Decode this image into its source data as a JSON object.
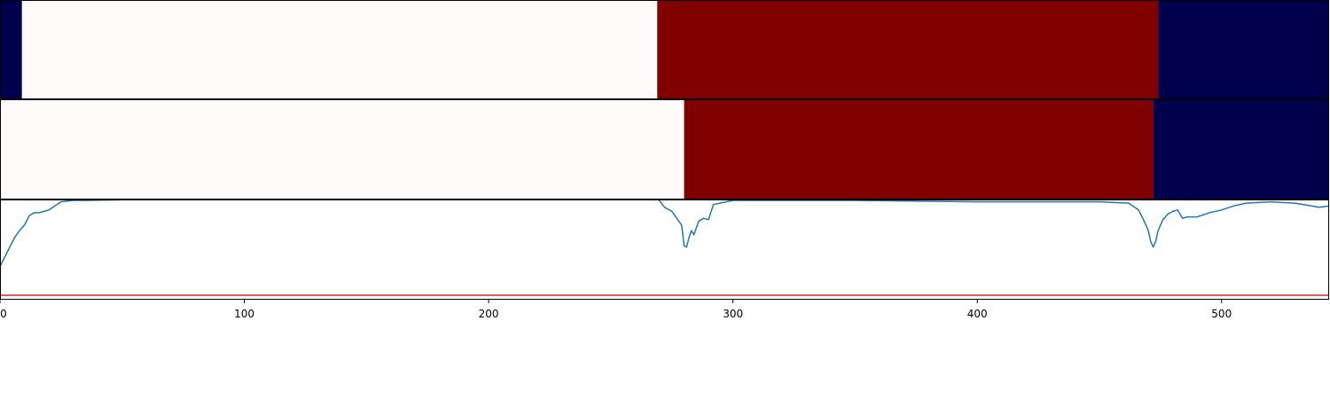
{
  "chart_data": [
    {
      "type": "heatmap",
      "xlim": [
        0,
        544
      ],
      "segments": [
        {
          "start": 0,
          "end": 9,
          "value": -1
        },
        {
          "start": 9,
          "end": 269,
          "value": 0
        },
        {
          "start": 269,
          "end": 474,
          "value": 1
        },
        {
          "start": 474,
          "end": 544,
          "value": -1
        }
      ]
    },
    {
      "type": "heatmap",
      "xlim": [
        0,
        544
      ],
      "segments": [
        {
          "start": 0,
          "end": 280,
          "value": 0
        },
        {
          "start": 280,
          "end": 472,
          "value": 1
        },
        {
          "start": 472,
          "end": 544,
          "value": -1
        }
      ]
    },
    {
      "type": "line",
      "xlim": [
        0,
        544
      ],
      "ylim": [
        0,
        1
      ],
      "xticks": [
        0,
        100,
        200,
        300,
        400,
        500
      ],
      "xtick_labels": [
        "0",
        "100",
        "200",
        "300",
        "400",
        "500"
      ],
      "threshold": 0.31,
      "threshold_color": "#d62728",
      "line_color": "#1f77b4",
      "colormap": {
        "-1": "#00004c",
        "0": "#fffbfb",
        "1": "#800000"
      },
      "series": [
        {
          "x": [
            0,
            2,
            4,
            6,
            8,
            10,
            12,
            14,
            16,
            18,
            20,
            25,
            30,
            35,
            100,
            269,
            272,
            275,
            277,
            279,
            280,
            281,
            282,
            283,
            284,
            286,
            288,
            290,
            292,
            300,
            320,
            350,
            400,
            450,
            462,
            466,
            468,
            470,
            471,
            472,
            473,
            474,
            476,
            478,
            480,
            482,
            484,
            486,
            488,
            490,
            495,
            500,
            505,
            510,
            520,
            530,
            540,
            544
          ],
          "y": [
            0.52,
            0.59,
            0.66,
            0.73,
            0.78,
            0.82,
            0.89,
            0.91,
            0.91,
            0.92,
            0.93,
            0.99,
            1.0,
            1.0,
            1.02,
            1.02,
            0.95,
            0.92,
            0.87,
            0.82,
            0.67,
            0.66,
            0.73,
            0.78,
            0.75,
            0.85,
            0.87,
            0.86,
            0.97,
            1.0,
            1.0,
            1.0,
            0.99,
            0.99,
            0.98,
            0.93,
            0.86,
            0.78,
            0.7,
            0.66,
            0.7,
            0.78,
            0.86,
            0.9,
            0.92,
            0.93,
            0.87,
            0.88,
            0.88,
            0.88,
            0.91,
            0.93,
            0.96,
            0.98,
            0.99,
            0.98,
            0.95,
            0.96
          ]
        }
      ]
    }
  ]
}
